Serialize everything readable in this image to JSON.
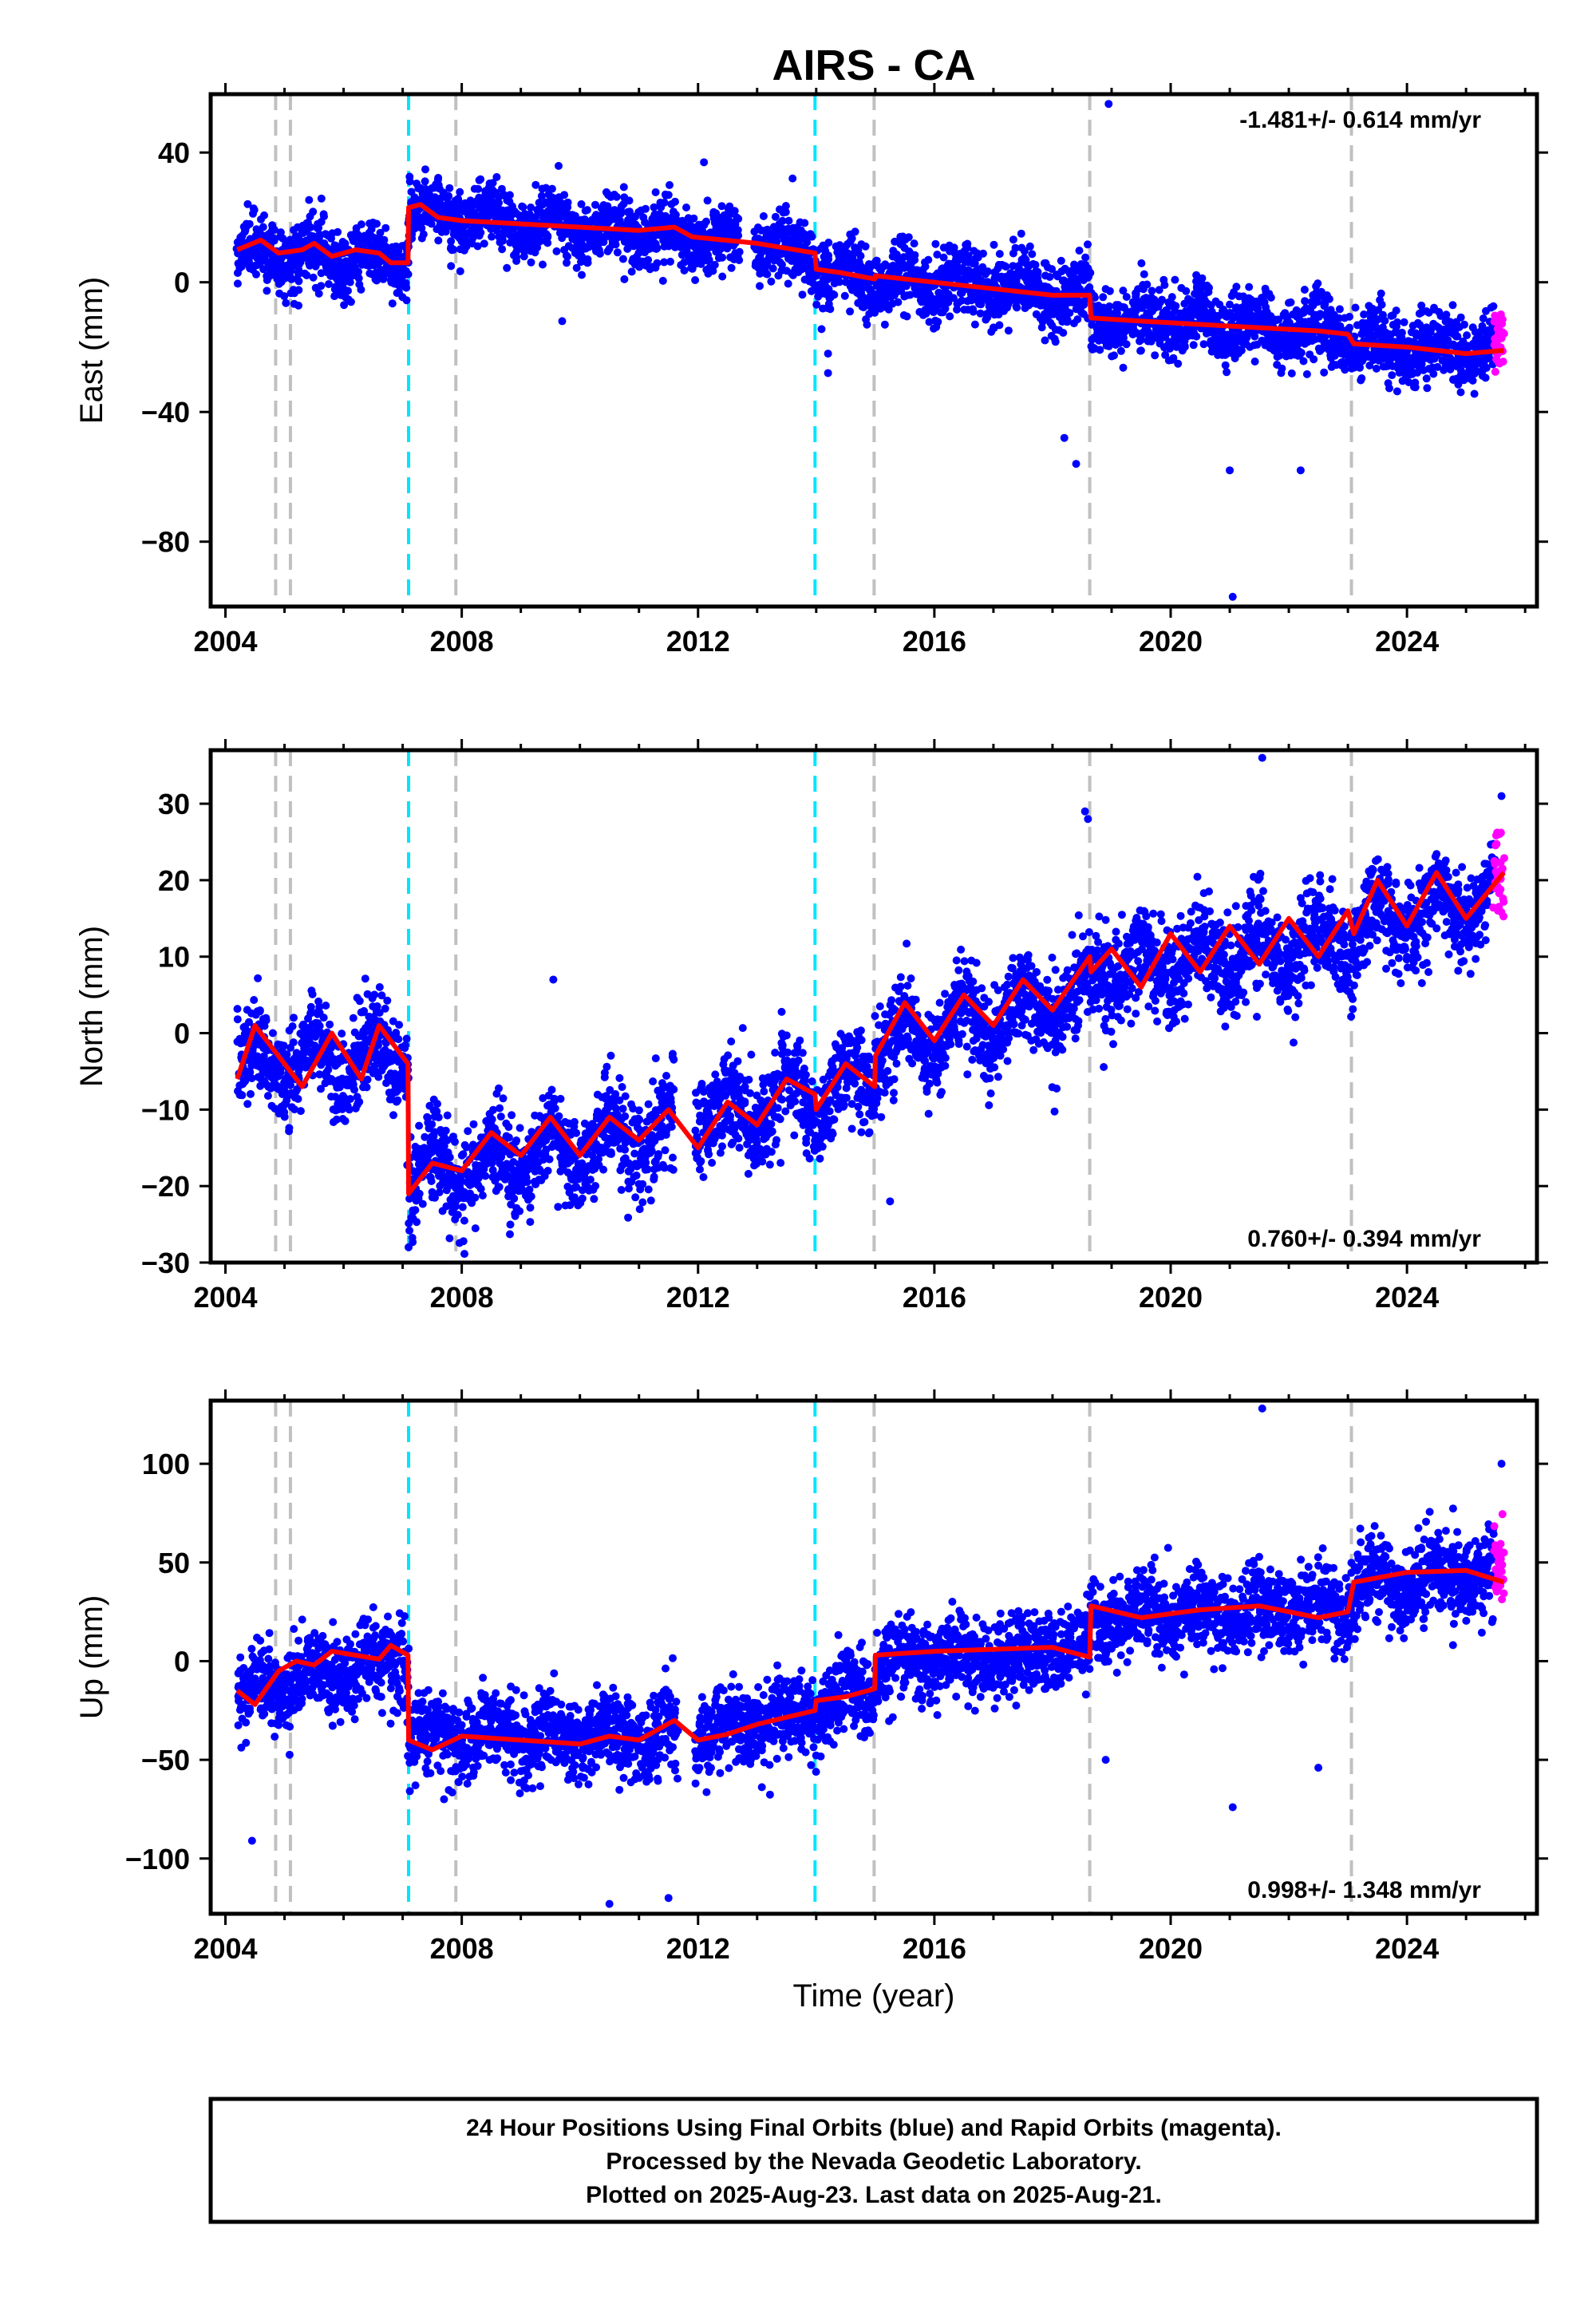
{
  "title": "AIRS - CA",
  "colors": {
    "final_orbits": "#0000ff",
    "rapid_orbits": "#ff00ff",
    "model": "#ff0000",
    "equipment_change": "#c0c0c0",
    "earthquake": "#00e5ff"
  },
  "chart_data": [
    {
      "type": "scatter",
      "panel": "east",
      "ylabel": "East (mm)",
      "xlabel": "",
      "xlim": [
        2003.75,
        2026.2
      ],
      "ylim": [
        -100,
        58
      ],
      "xticks": [
        2004,
        2008,
        2012,
        2016,
        2020,
        2024
      ],
      "yticks": [
        -80,
        -40,
        0,
        40
      ],
      "rate_label": "-1.481+/- 0.614 mm/yr",
      "data_span": [
        2004.2,
        2025.64
      ],
      "rapid_span": [
        2025.48,
        2025.64
      ],
      "model": {
        "x": [
          2004.2,
          2004.6,
          2004.9,
          2005.3,
          2005.5,
          2005.8,
          2006.2,
          2006.6,
          2006.8,
          2007.09,
          2007.1,
          2007.3,
          2007.6,
          2008.0,
          2009.0,
          2010.0,
          2011.0,
          2011.6,
          2011.9,
          2013.0,
          2013.98,
          2014.0,
          2014.4,
          2014.99,
          2015.0,
          2016.0,
          2017.0,
          2018.0,
          2018.63,
          2018.65,
          2019.5,
          2020.5,
          2021.5,
          2022.5,
          2023.0,
          2023.1,
          2024.0,
          2025.0,
          2025.64
        ],
        "y": [
          10,
          13,
          9,
          10,
          12,
          8,
          10,
          9,
          6,
          6,
          23,
          24,
          20,
          19,
          18,
          17,
          16,
          17,
          14,
          12,
          9,
          4,
          3,
          1,
          2,
          0,
          -2,
          -4,
          -4,
          -11,
          -12,
          -13,
          -14,
          -15,
          -16,
          -19,
          -20,
          -22,
          -21
        ]
      },
      "trend": [
        [
          2004.2,
          10
        ],
        [
          2007.09,
          6
        ],
        [
          2007.1,
          22
        ],
        [
          2011.9,
          14
        ],
        [
          2013.98,
          9
        ],
        [
          2014.0,
          4
        ],
        [
          2014.99,
          1
        ],
        [
          2015.0,
          1
        ],
        [
          2018.63,
          -4
        ],
        [
          2018.65,
          -11
        ],
        [
          2023.0,
          -16
        ],
        [
          2023.1,
          -19
        ],
        [
          2025.64,
          -22
        ]
      ],
      "amplitude": 3,
      "scatter_sd": 5,
      "gap": [
        2012.7,
        2012.95
      ],
      "outliers": [
        [
          2018.95,
          55
        ],
        [
          2021.05,
          -97
        ],
        [
          2021.0,
          -58
        ],
        [
          2022.2,
          -58
        ],
        [
          2018.2,
          -48
        ],
        [
          2018.4,
          -56
        ],
        [
          2014.2,
          -28
        ],
        [
          2014.2,
          -22
        ],
        [
          2009.7,
          -12
        ],
        [
          2012.1,
          37
        ],
        [
          2013.6,
          32
        ]
      ],
      "equipment_changes": [
        2004.85,
        2005.1,
        2007.9,
        2014.98,
        2018.63,
        2023.06
      ],
      "earthquakes": [
        2007.1,
        2013.98
      ]
    },
    {
      "type": "scatter",
      "panel": "north",
      "ylabel": "North (mm)",
      "xlabel": "",
      "xlim": [
        2003.75,
        2026.2
      ],
      "ylim": [
        -30,
        37
      ],
      "xticks": [
        2004,
        2008,
        2012,
        2016,
        2020,
        2024
      ],
      "yticks": [
        -30,
        -20,
        -10,
        0,
        10,
        20,
        30
      ],
      "rate_label": "0.760+/- 0.394 mm/yr",
      "data_span": [
        2004.2,
        2025.64
      ],
      "rapid_span": [
        2025.48,
        2025.64
      ],
      "model": {
        "x": [
          2004.2,
          2004.5,
          2005.0,
          2005.3,
          2005.8,
          2006.3,
          2006.6,
          2007.09,
          2007.1,
          2007.5,
          2008.0,
          2008.5,
          2009.0,
          2009.5,
          2010.0,
          2010.5,
          2011.0,
          2011.5,
          2012.0,
          2012.5,
          2013.0,
          2013.5,
          2013.98,
          2014.0,
          2014.5,
          2014.99,
          2015.0,
          2015.5,
          2016.0,
          2016.5,
          2017.0,
          2017.5,
          2018.0,
          2018.63,
          2018.65,
          2019.0,
          2019.5,
          2020.0,
          2020.5,
          2021.0,
          2021.5,
          2022.0,
          2022.5,
          2023.0,
          2023.1,
          2023.5,
          2024.0,
          2024.5,
          2025.0,
          2025.64
        ],
        "y": [
          -6,
          1,
          -4,
          -7,
          0,
          -6,
          1,
          -4,
          -21,
          -17,
          -18,
          -13,
          -16,
          -11,
          -16,
          -11,
          -14,
          -10,
          -15,
          -9,
          -12,
          -6,
          -8,
          -10,
          -4,
          -7,
          -3,
          4,
          -1,
          5,
          1,
          7,
          3,
          10,
          8,
          11,
          6,
          13,
          8,
          14,
          9,
          15,
          10,
          16,
          13,
          20,
          14,
          21,
          15,
          21
        ]
      },
      "trend": [
        [
          2004.2,
          -4
        ],
        [
          2007.09,
          -3
        ],
        [
          2007.1,
          -19
        ],
        [
          2010.5,
          -14
        ],
        [
          2013.98,
          -8
        ],
        [
          2014.0,
          -9
        ],
        [
          2014.99,
          -5
        ],
        [
          2015.0,
          -2
        ],
        [
          2018.63,
          5
        ],
        [
          2018.65,
          8
        ],
        [
          2023.0,
          12
        ],
        [
          2023.1,
          14
        ],
        [
          2025.64,
          18
        ]
      ],
      "amplitude": 3,
      "scatter_sd": 3,
      "gap": [
        2011.6,
        2011.95
      ],
      "outliers": [
        [
          2021.55,
          36
        ],
        [
          2025.6,
          31
        ],
        [
          2018.55,
          29
        ],
        [
          2018.6,
          28
        ],
        [
          2009.55,
          7
        ],
        [
          2015.25,
          -22
        ],
        [
          2007.1,
          -28
        ]
      ],
      "equipment_changes": [
        2004.85,
        2005.1,
        2007.9,
        2014.98,
        2018.63,
        2023.06
      ],
      "earthquakes": [
        2007.1,
        2013.98
      ]
    },
    {
      "type": "scatter",
      "panel": "up",
      "ylabel": "Up (mm)",
      "xlabel": "Time (year)",
      "xlim": [
        2003.75,
        2026.2
      ],
      "ylim": [
        -128,
        132
      ],
      "xticks": [
        2004,
        2008,
        2012,
        2016,
        2020,
        2024
      ],
      "yticks": [
        -100,
        -50,
        0,
        50,
        100
      ],
      "rate_label": "0.998+/- 1.348 mm/yr",
      "data_span": [
        2004.2,
        2025.64
      ],
      "rapid_span": [
        2025.48,
        2025.64
      ],
      "model": {
        "x": [
          2004.2,
          2004.5,
          2004.9,
          2005.2,
          2005.5,
          2005.8,
          2006.2,
          2006.6,
          2006.8,
          2007.09,
          2007.1,
          2007.5,
          2008.0,
          2009.0,
          2010.0,
          2010.5,
          2011.0,
          2011.6,
          2012.0,
          2012.5,
          2013.0,
          2013.98,
          2014.0,
          2014.5,
          2014.99,
          2015.0,
          2016.0,
          2017.0,
          2018.0,
          2018.63,
          2018.65,
          2019.5,
          2020.5,
          2021.5,
          2022.5,
          2023.0,
          2023.1,
          2024.0,
          2025.0,
          2025.64
        ],
        "y": [
          -15,
          -22,
          -5,
          0,
          -2,
          5,
          3,
          1,
          8,
          3,
          -40,
          -45,
          -38,
          -40,
          -42,
          -38,
          -40,
          -30,
          -40,
          -37,
          -32,
          -25,
          -20,
          -18,
          -14,
          3,
          5,
          6,
          7,
          2,
          28,
          22,
          26,
          28,
          22,
          25,
          40,
          45,
          46,
          40
        ]
      },
      "trend": [
        [
          2004.2,
          -17
        ],
        [
          2007.09,
          3
        ],
        [
          2007.1,
          -38
        ],
        [
          2011.6,
          -38
        ],
        [
          2013.98,
          -26
        ],
        [
          2014.0,
          -22
        ],
        [
          2014.99,
          -15
        ],
        [
          2015.0,
          -2
        ],
        [
          2018.63,
          6
        ],
        [
          2018.65,
          20
        ],
        [
          2023.0,
          27
        ],
        [
          2023.1,
          38
        ],
        [
          2025.64,
          44
        ]
      ],
      "amplitude": 5,
      "scatter_sd": 10,
      "gap": [
        2011.65,
        2011.95
      ],
      "outliers": [
        [
          2021.55,
          128
        ],
        [
          2025.6,
          100
        ],
        [
          2021.05,
          -74
        ],
        [
          2022.5,
          -54
        ],
        [
          2004.45,
          -91
        ],
        [
          2010.5,
          -123
        ],
        [
          2011.5,
          -120
        ],
        [
          2007.7,
          -70
        ],
        [
          2018.9,
          -50
        ]
      ],
      "equipment_changes": [
        2004.85,
        2005.1,
        2007.9,
        2014.98,
        2018.63,
        2023.06
      ],
      "earthquakes": [
        2007.1,
        2013.98
      ]
    }
  ],
  "footer": {
    "line1": "24 Hour Positions Using Final Orbits (blue) and Rapid Orbits (magenta).",
    "line2": "Processed by the Nevada Geodetic Laboratory.",
    "line3": "Plotted on 2025-Aug-23. Last data on 2025-Aug-21."
  }
}
